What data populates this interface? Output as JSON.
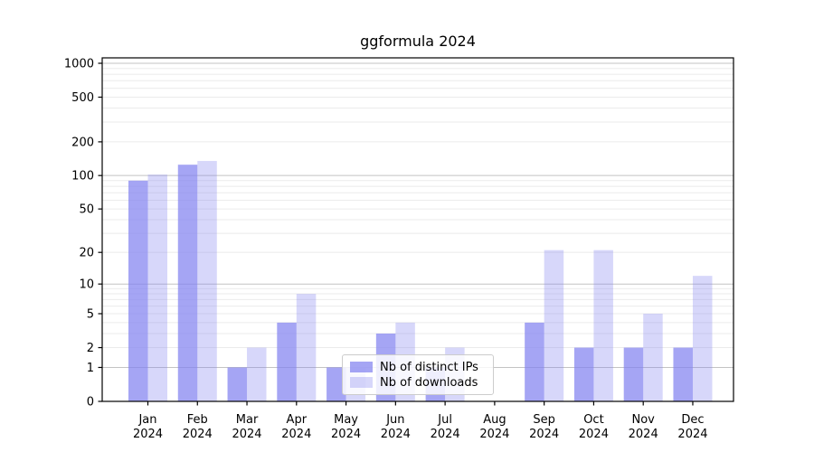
{
  "chart_data": {
    "type": "bar",
    "title": "ggformula 2024",
    "year_label": "2024",
    "categories": [
      "Jan",
      "Feb",
      "Mar",
      "Apr",
      "May",
      "Jun",
      "Jul",
      "Aug",
      "Sep",
      "Oct",
      "Nov",
      "Dec"
    ],
    "series": [
      {
        "name": "Nb of distinct IPs",
        "values": [
          90,
          125,
          1,
          4,
          1,
          3,
          1,
          0,
          4,
          2,
          2,
          2
        ],
        "color": "rgba(130,130,240,0.72)"
      },
      {
        "name": "Nb of downloads",
        "values": [
          102,
          135,
          2,
          8,
          1,
          4,
          2,
          0,
          21,
          21,
          5,
          12
        ],
        "color": "rgba(130,130,240,0.32)"
      }
    ],
    "yscale": "log1p",
    "yticks": [
      0,
      1,
      2,
      5,
      10,
      20,
      50,
      100,
      200,
      500,
      1000
    ],
    "ylim": [
      0,
      1120
    ],
    "xlabel": "",
    "ylabel": "",
    "grid": "on",
    "legend_position": "lower-center",
    "colors": {
      "major_gridline": "#c3c3c3",
      "minor_gridline": "#ebebeb",
      "spine": "#000000",
      "tick_text": "#000000"
    }
  }
}
